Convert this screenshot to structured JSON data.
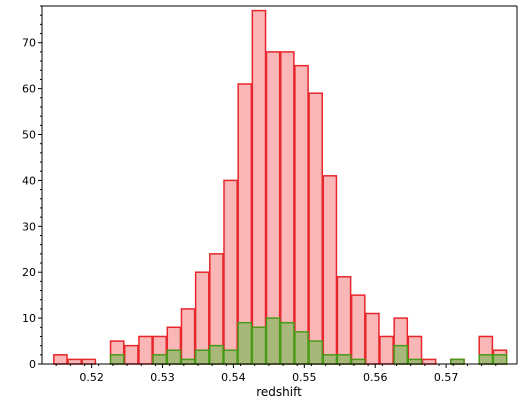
{
  "chart_data": {
    "type": "bar",
    "xlabel": "redshift",
    "ylabel": "",
    "xlim": [
      0.513,
      0.58
    ],
    "ylim": [
      0,
      78
    ],
    "grid": false,
    "x_ticks": [
      0.52,
      0.53,
      0.54,
      0.55,
      0.56,
      0.57
    ],
    "x_tick_labels": [
      "0.52",
      "0.53",
      "0.54",
      "0.55",
      "0.56",
      "0.57"
    ],
    "y_ticks": [
      0,
      10,
      20,
      30,
      40,
      50,
      60,
      70
    ],
    "y_tick_labels": [
      "0",
      "10",
      "20",
      "30",
      "40",
      "50",
      "60",
      "70"
    ],
    "bin_edges": [
      0.5146,
      0.5166,
      0.5186,
      0.5206,
      0.5226,
      0.5246,
      0.5266,
      0.5286,
      0.5306,
      0.5326,
      0.5346,
      0.5366,
      0.5386,
      0.5406,
      0.5426,
      0.5446,
      0.5466,
      0.5486,
      0.5506,
      0.5526,
      0.5546,
      0.5566,
      0.5586,
      0.5606,
      0.5626,
      0.5646,
      0.5666,
      0.5686,
      0.5706,
      0.5726,
      0.5746,
      0.5766,
      0.5786
    ],
    "series": [
      {
        "color": "#e8262b",
        "fill": "#f9b7b8",
        "values": [
          2,
          1,
          1,
          0,
          5,
          4,
          6,
          6,
          8,
          12,
          20,
          24,
          40,
          61,
          77,
          68,
          68,
          65,
          59,
          41,
          19,
          15,
          11,
          6,
          10,
          6,
          1,
          0,
          1,
          0,
          6,
          3
        ]
      },
      {
        "color": "#4a9a1a",
        "fill": "#a8b87a",
        "values": [
          0,
          0,
          0,
          0,
          2,
          0,
          0,
          2,
          3,
          1,
          3,
          4,
          3,
          9,
          8,
          10,
          9,
          7,
          5,
          2,
          2,
          1,
          0,
          0,
          4,
          1,
          0,
          0,
          1,
          0,
          2,
          2
        ]
      }
    ]
  }
}
